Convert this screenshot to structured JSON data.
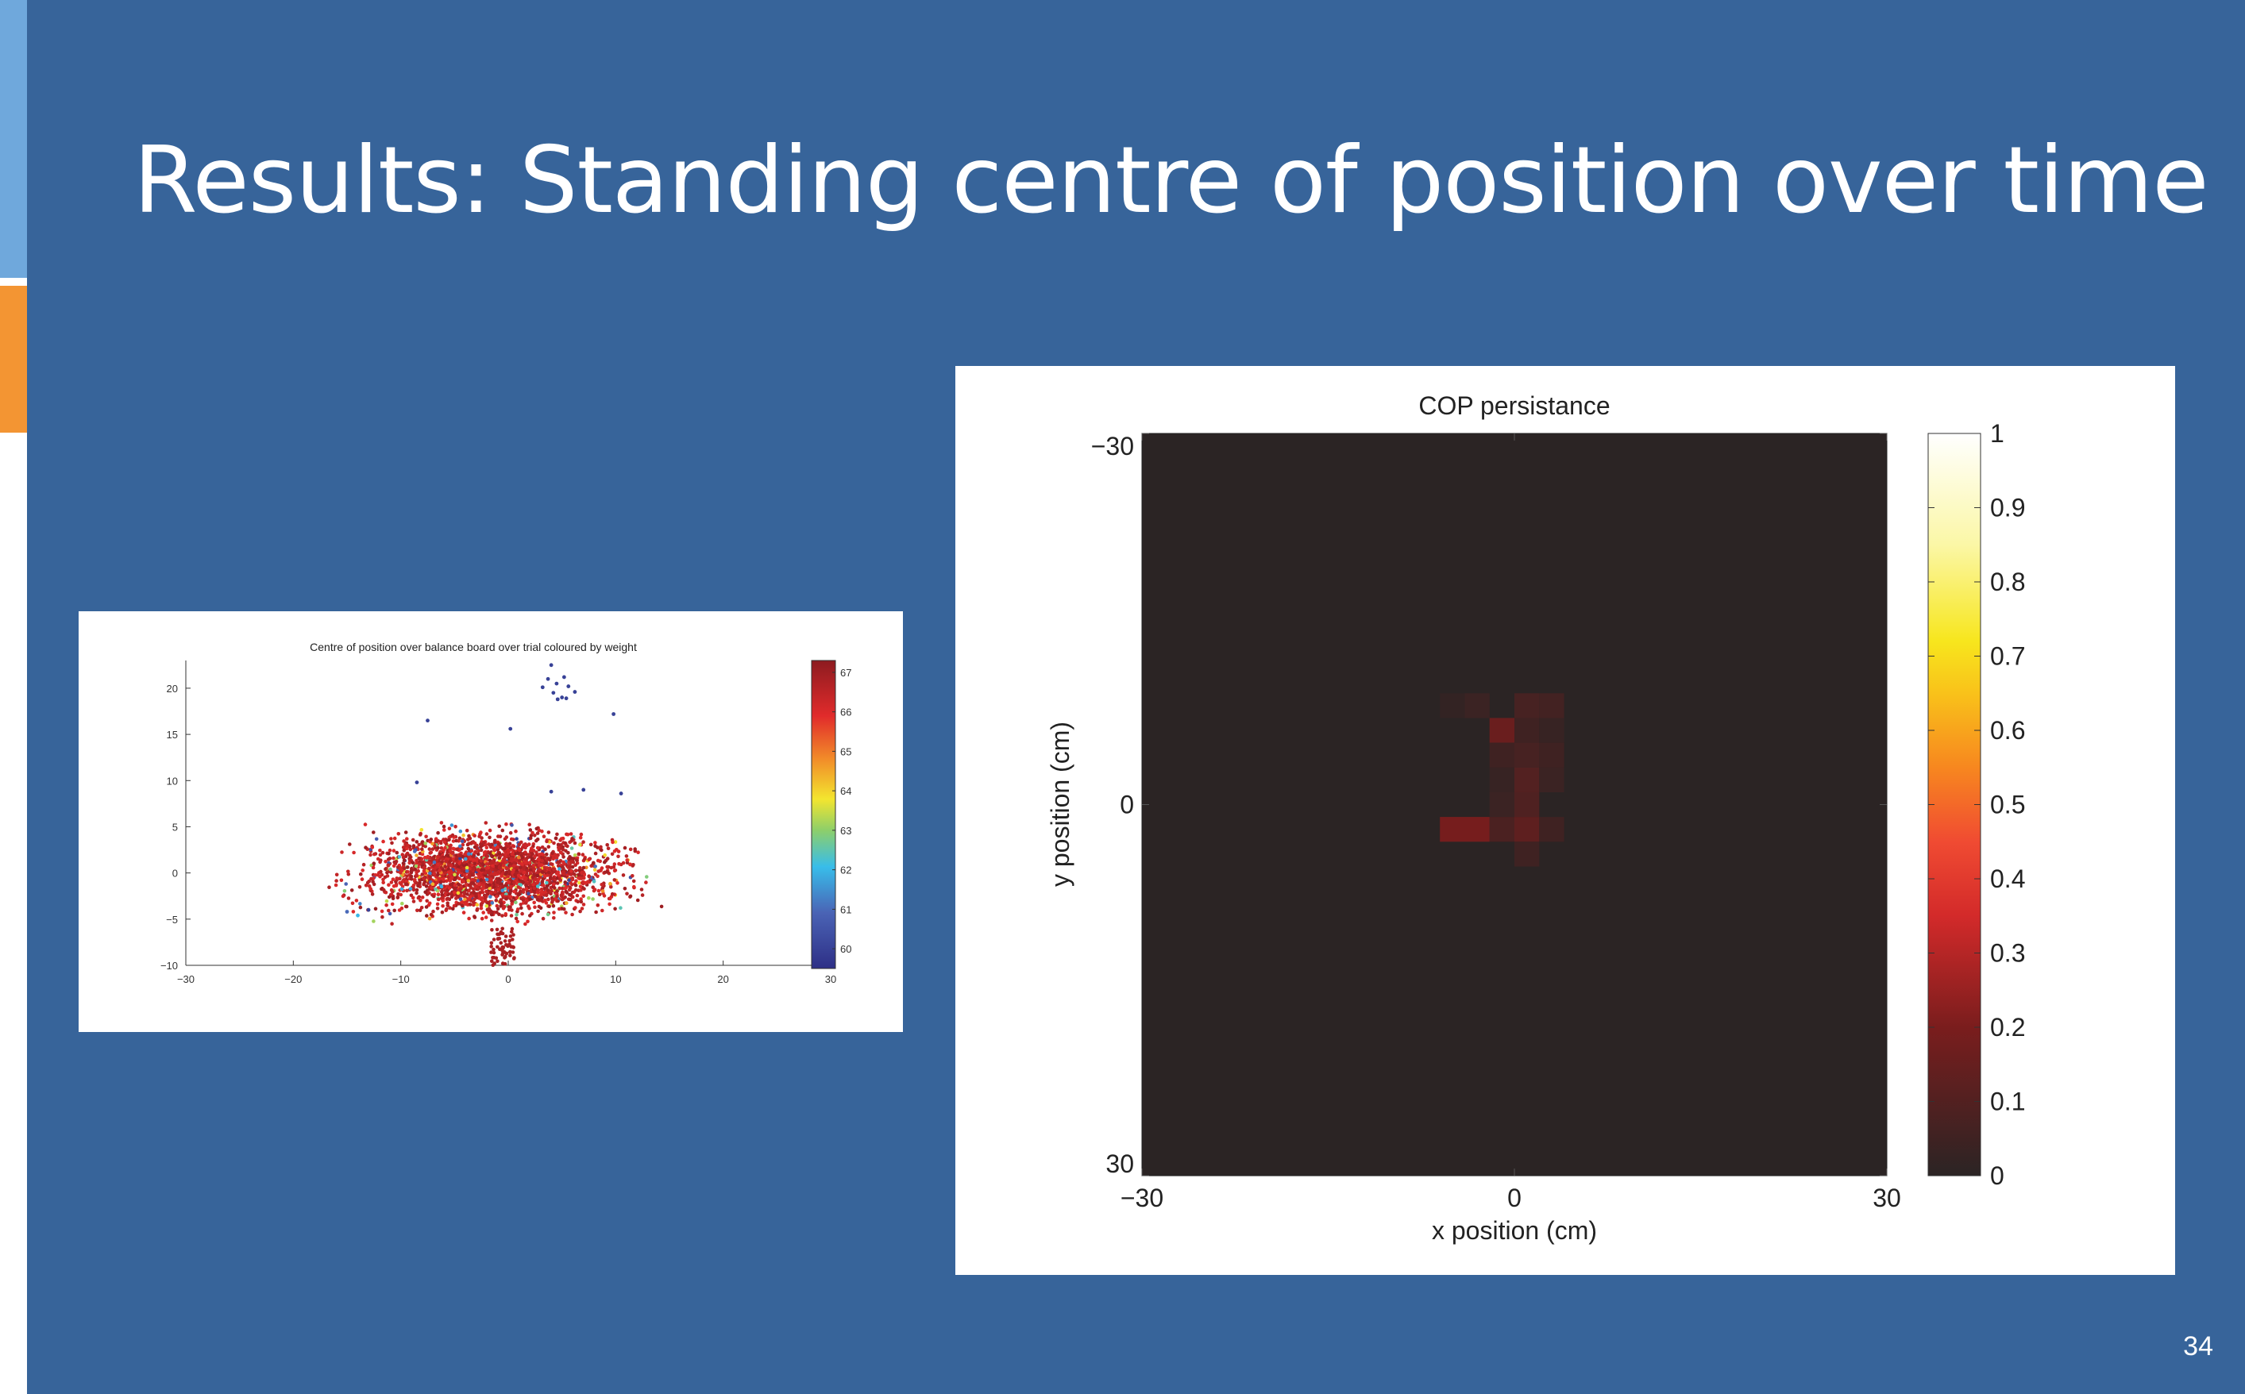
{
  "slide": {
    "title": "Results: Standing centre of position over time",
    "page_number": "34",
    "colors": {
      "background": "#37649a",
      "accent_blue": "#6fa8dc",
      "accent_orange": "#f39533"
    }
  },
  "chart_data": [
    {
      "type": "scatter",
      "title": "Centre of position over balance board over trial coloured by weight",
      "xlabel": "",
      "ylabel": "",
      "xlim": [
        -30,
        30
      ],
      "ylim": [
        -10,
        23
      ],
      "x_ticks": [
        "−30",
        "−20",
        "−10",
        "0",
        "10",
        "20",
        "30"
      ],
      "y_ticks": [
        "20",
        "15",
        "10",
        "5",
        "0",
        "−5",
        "−10"
      ],
      "colorbar": {
        "min": 59.5,
        "max": 67.3,
        "ticks": [
          "67",
          "66",
          "65",
          "64",
          "63",
          "62",
          "61",
          "60"
        ],
        "colormap": "jet"
      },
      "cloud": {
        "x_range": [
          -16,
          17
        ],
        "y_range": [
          -8,
          8
        ],
        "dominant_weight": 66.5
      },
      "series": [
        {
          "points": [
            {
              "x": 4,
              "y": 22.5,
              "w": 60
            },
            {
              "x": 3.7,
              "y": 21,
              "w": 60
            },
            {
              "x": 4.5,
              "y": 20.5,
              "w": 60
            },
            {
              "x": 5.2,
              "y": 21.2,
              "w": 60
            },
            {
              "x": 5.6,
              "y": 20.2,
              "w": 60
            },
            {
              "x": 4.2,
              "y": 19.5,
              "w": 60
            },
            {
              "x": 5,
              "y": 19,
              "w": 60
            },
            {
              "x": 4.6,
              "y": 18.8,
              "w": 60
            },
            {
              "x": 5.4,
              "y": 18.9,
              "w": 60
            },
            {
              "x": 6.2,
              "y": 19.6,
              "w": 60
            },
            {
              "x": 3.2,
              "y": 20.1,
              "w": 60
            },
            {
              "x": 9.8,
              "y": 17.2,
              "w": 60
            },
            {
              "x": -7.5,
              "y": 16.5,
              "w": 60
            },
            {
              "x": 0.2,
              "y": 15.6,
              "w": 60
            },
            {
              "x": -8.5,
              "y": 9.8,
              "w": 60
            },
            {
              "x": 4,
              "y": 8.8,
              "w": 60
            },
            {
              "x": 7,
              "y": 9,
              "w": 60
            },
            {
              "x": 10.5,
              "y": 8.6,
              "w": 60
            },
            {
              "x": -15,
              "y": -4.2,
              "w": 61
            },
            {
              "x": -14,
              "y": -4.6,
              "w": 62
            },
            {
              "x": -13,
              "y": -4,
              "w": 60
            }
          ]
        }
      ]
    },
    {
      "type": "heatmap",
      "title": "COP persistance",
      "xlabel": "x position (cm)",
      "ylabel": "y position (cm)",
      "xlim": [
        -30,
        30
      ],
      "ylim": [
        -30,
        30
      ],
      "x_ticks": [
        "−30",
        "0",
        "30"
      ],
      "y_ticks": [
        "−30",
        "0",
        "30"
      ],
      "colorbar": {
        "min": 0,
        "max": 1,
        "ticks": [
          "1",
          "0.9",
          "0.8",
          "0.7",
          "0.6",
          "0.5",
          "0.4",
          "0.3",
          "0.2",
          "0.1",
          "0"
        ],
        "colormap": "hot"
      },
      "cell_size_cm": 2,
      "cells": [
        {
          "x": -3,
          "y": -8,
          "v": 0.04
        },
        {
          "x": 1,
          "y": -8,
          "v": 0.07
        },
        {
          "x": 3,
          "y": -8,
          "v": 0.06
        },
        {
          "x": -5,
          "y": -8,
          "v": 0.02
        },
        {
          "x": -1,
          "y": -6,
          "v": 0.16
        },
        {
          "x": 1,
          "y": -6,
          "v": 0.05
        },
        {
          "x": 3,
          "y": -6,
          "v": 0.03
        },
        {
          "x": -1,
          "y": -4,
          "v": 0.05
        },
        {
          "x": 1,
          "y": -4,
          "v": 0.07
        },
        {
          "x": 3,
          "y": -4,
          "v": 0.05
        },
        {
          "x": -1,
          "y": -2,
          "v": 0.03
        },
        {
          "x": 1,
          "y": -2,
          "v": 0.1
        },
        {
          "x": 3,
          "y": -2,
          "v": 0.04
        },
        {
          "x": 1,
          "y": 0,
          "v": 0.09
        },
        {
          "x": -1,
          "y": 0,
          "v": 0.04
        },
        {
          "x": -5,
          "y": 2,
          "v": 0.19
        },
        {
          "x": -3,
          "y": 2,
          "v": 0.19
        },
        {
          "x": -1,
          "y": 2,
          "v": 0.08
        },
        {
          "x": 1,
          "y": 2,
          "v": 0.13
        },
        {
          "x": 3,
          "y": 2,
          "v": 0.05
        },
        {
          "x": 1,
          "y": 4,
          "v": 0.05
        }
      ]
    }
  ]
}
